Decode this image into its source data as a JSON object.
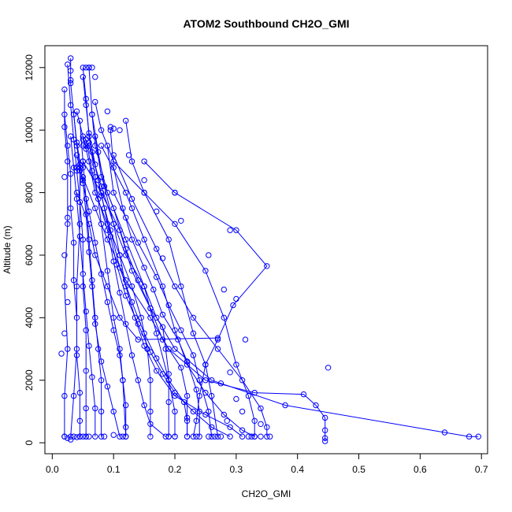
{
  "chart_data": {
    "type": "line",
    "title": "ATOM2 Southbound CH2O_GMI",
    "xlabel": "CH2O_GMI",
    "ylabel": "Altitude (m)",
    "xlim": [
      -0.012,
      0.71
    ],
    "ylim": [
      -350,
      12700
    ],
    "xticks": [
      0.0,
      0.1,
      0.2,
      0.3,
      0.4,
      0.5,
      0.6,
      0.7
    ],
    "xtick_labels": [
      "0.0",
      "0.1",
      "0.2",
      "0.3",
      "0.4",
      "0.5",
      "0.6",
      "0.7"
    ],
    "yticks": [
      0,
      2000,
      4000,
      6000,
      8000,
      10000,
      12000
    ],
    "ytick_labels": [
      "0",
      "2000",
      "4000",
      "6000",
      "8000",
      "10000",
      "12000"
    ],
    "grid": false,
    "color": "#0000ff",
    "marker": "open-circle",
    "profiles": [
      [
        [
          0.02,
          11300
        ],
        [
          0.02,
          10100
        ],
        [
          0.025,
          9000
        ],
        [
          0.025,
          7000
        ],
        [
          0.02,
          5000
        ],
        [
          0.025,
          3000
        ],
        [
          0.02,
          1500
        ],
        [
          0.02,
          200
        ]
      ],
      [
        [
          0.03,
          12300
        ],
        [
          0.03,
          11500
        ],
        [
          0.035,
          10500
        ],
        [
          0.04,
          9500
        ],
        [
          0.045,
          8800
        ],
        [
          0.045,
          7000
        ],
        [
          0.04,
          5000
        ],
        [
          0.04,
          3000
        ],
        [
          0.035,
          1500
        ],
        [
          0.03,
          200
        ]
      ],
      [
        [
          0.05,
          12000
        ],
        [
          0.055,
          11000
        ],
        [
          0.06,
          9800
        ],
        [
          0.07,
          8500
        ],
        [
          0.08,
          7000
        ],
        [
          0.09,
          5500
        ],
        [
          0.1,
          4000
        ],
        [
          0.11,
          3000
        ],
        [
          0.115,
          2000
        ],
        [
          0.12,
          200
        ]
      ],
      [
        [
          0.06,
          12000
        ],
        [
          0.065,
          10500
        ],
        [
          0.07,
          9500
        ],
        [
          0.09,
          8000
        ],
        [
          0.12,
          6500
        ],
        [
          0.15,
          5000
        ],
        [
          0.17,
          3500
        ],
        [
          0.19,
          2000
        ],
        [
          0.2,
          1000
        ],
        [
          0.2,
          200
        ]
      ],
      [
        [
          0.07,
          10900
        ],
        [
          0.08,
          10000
        ],
        [
          0.1,
          9000
        ],
        [
          0.15,
          8000
        ],
        [
          0.19,
          6500
        ],
        [
          0.21,
          5000
        ],
        [
          0.23,
          3500
        ],
        [
          0.25,
          2500
        ],
        [
          0.26,
          1500
        ],
        [
          0.27,
          200
        ]
      ],
      [
        [
          0.12,
          10300
        ],
        [
          0.13,
          9000
        ],
        [
          0.15,
          8000
        ],
        [
          0.2,
          7000
        ],
        [
          0.25,
          5500
        ],
        [
          0.28,
          4000
        ],
        [
          0.3,
          2500
        ],
        [
          0.32,
          1500
        ],
        [
          0.33,
          700
        ],
        [
          0.33,
          200
        ]
      ],
      [
        [
          0.15,
          9000
        ],
        [
          0.2,
          8000
        ],
        [
          0.3,
          6800
        ],
        [
          0.35,
          5650
        ],
        [
          0.295,
          4400
        ],
        [
          0.27,
          3300
        ],
        [
          0.25,
          2500
        ],
        [
          0.24,
          1500
        ],
        [
          0.235,
          700
        ],
        [
          0.23,
          200
        ]
      ],
      [
        [
          0.1,
          9200
        ],
        [
          0.13,
          7800
        ],
        [
          0.17,
          6200
        ],
        [
          0.2,
          5000
        ],
        [
          0.23,
          4000
        ],
        [
          0.27,
          3000
        ],
        [
          0.31,
          2000
        ],
        [
          0.34,
          1100
        ],
        [
          0.35,
          500
        ],
        [
          0.35,
          200
        ]
      ],
      [
        [
          0.08,
          9500
        ],
        [
          0.12,
          8000
        ],
        [
          0.15,
          6500
        ],
        [
          0.18,
          5000
        ],
        [
          0.2,
          3600
        ],
        [
          0.22,
          2500
        ],
        [
          0.25,
          1600
        ],
        [
          0.28,
          900
        ],
        [
          0.31,
          400
        ],
        [
          0.33,
          200
        ]
      ],
      [
        [
          0.05,
          9000
        ],
        [
          0.08,
          8000
        ],
        [
          0.11,
          6800
        ],
        [
          0.13,
          5500
        ],
        [
          0.16,
          4300
        ],
        [
          0.18,
          3300
        ],
        [
          0.21,
          2400
        ],
        [
          0.22,
          1500
        ],
        [
          0.22,
          800
        ],
        [
          0.22,
          200
        ]
      ],
      [
        [
          0.06,
          9500
        ],
        [
          0.08,
          8200
        ],
        [
          0.1,
          7000
        ],
        [
          0.12,
          6000
        ],
        [
          0.15,
          5000
        ],
        [
          0.17,
          4000
        ],
        [
          0.2,
          3000
        ],
        [
          0.26,
          2000
        ],
        [
          0.38,
          1200
        ],
        [
          0.64,
          330
        ],
        [
          0.68,
          200
        ],
        [
          0.695,
          200
        ]
      ],
      [
        [
          0.05,
          8500
        ],
        [
          0.07,
          7500
        ],
        [
          0.09,
          6500
        ],
        [
          0.12,
          5200
        ],
        [
          0.16,
          4000
        ],
        [
          0.19,
          3000
        ],
        [
          0.25,
          2000
        ],
        [
          0.33,
          1600
        ],
        [
          0.41,
          1550
        ],
        [
          0.43,
          1200
        ],
        [
          0.445,
          800
        ],
        [
          0.445,
          400
        ],
        [
          0.445,
          150
        ],
        [
          0.445,
          50
        ]
      ],
      [
        [
          0.04,
          8000
        ],
        [
          0.06,
          7000
        ],
        [
          0.07,
          6000
        ],
        [
          0.09,
          5000
        ],
        [
          0.11,
          4000
        ],
        [
          0.14,
          3300
        ],
        [
          0.27,
          3350
        ]
      ],
      [
        [
          0.07,
          9800
        ],
        [
          0.08,
          8500
        ],
        [
          0.1,
          7500
        ],
        [
          0.12,
          6200
        ],
        [
          0.14,
          5200
        ],
        [
          0.16,
          4300
        ],
        [
          0.18,
          3700
        ],
        [
          0.185,
          3000
        ],
        [
          0.19,
          2200
        ],
        [
          0.19,
          1300
        ],
        [
          0.19,
          200
        ]
      ],
      [
        [
          0.09,
          9500
        ],
        [
          0.1,
          8000
        ],
        [
          0.12,
          7200
        ],
        [
          0.14,
          6400
        ],
        [
          0.17,
          5300
        ],
        [
          0.19,
          4400
        ],
        [
          0.21,
          3600
        ],
        [
          0.23,
          2800
        ],
        [
          0.24,
          2000
        ],
        [
          0.255,
          1000
        ],
        [
          0.26,
          200
        ]
      ],
      [
        [
          0.095,
          10000
        ],
        [
          0.1,
          8800
        ],
        [
          0.115,
          7500
        ],
        [
          0.13,
          6500
        ],
        [
          0.15,
          5600
        ],
        [
          0.165,
          4900
        ],
        [
          0.18,
          4100
        ],
        [
          0.205,
          3300
        ],
        [
          0.22,
          2600
        ],
        [
          0.235,
          1700
        ],
        [
          0.24,
          1000
        ],
        [
          0.24,
          200
        ]
      ],
      [
        [
          0.045,
          10300
        ],
        [
          0.05,
          9000
        ],
        [
          0.055,
          7800
        ],
        [
          0.06,
          6500
        ],
        [
          0.065,
          5200
        ],
        [
          0.07,
          4000
        ],
        [
          0.075,
          3000
        ],
        [
          0.08,
          2000
        ],
        [
          0.08,
          1000
        ],
        [
          0.08,
          200
        ]
      ],
      [
        [
          0.035,
          10500
        ],
        [
          0.04,
          9600
        ],
        [
          0.05,
          8400
        ],
        [
          0.055,
          7300
        ],
        [
          0.06,
          6100
        ],
        [
          0.065,
          5000
        ],
        [
          0.07,
          3800
        ],
        [
          0.08,
          2600
        ],
        [
          0.09,
          1800
        ],
        [
          0.1,
          1000
        ],
        [
          0.11,
          200
        ]
      ],
      [
        [
          0.055,
          9700
        ],
        [
          0.065,
          8700
        ],
        [
          0.075,
          7800
        ],
        [
          0.09,
          6800
        ],
        [
          0.1,
          5800
        ],
        [
          0.11,
          4800
        ],
        [
          0.12,
          3800
        ],
        [
          0.13,
          2800
        ],
        [
          0.14,
          2000
        ],
        [
          0.15,
          1200
        ],
        [
          0.16,
          600
        ],
        [
          0.185,
          200
        ]
      ],
      [
        [
          0.025,
          12100
        ],
        [
          0.03,
          10800
        ],
        [
          0.035,
          9700
        ],
        [
          0.04,
          8700
        ],
        [
          0.045,
          7700
        ],
        [
          0.05,
          6500
        ],
        [
          0.05,
          5000
        ],
        [
          0.055,
          3600
        ],
        [
          0.055,
          2300
        ],
        [
          0.055,
          1100
        ],
        [
          0.055,
          200
        ]
      ],
      [
        [
          0.065,
          10500
        ],
        [
          0.075,
          9300
        ],
        [
          0.085,
          8200
        ],
        [
          0.1,
          7000
        ],
        [
          0.11,
          6000
        ],
        [
          0.12,
          5000
        ],
        [
          0.135,
          4000
        ],
        [
          0.15,
          3100
        ],
        [
          0.17,
          2300
        ],
        [
          0.2,
          1500
        ],
        [
          0.25,
          900
        ],
        [
          0.29,
          500
        ],
        [
          0.31,
          200
        ]
      ],
      [
        [
          0.03,
          9800
        ],
        [
          0.035,
          8800
        ],
        [
          0.04,
          7800
        ],
        [
          0.045,
          6600
        ],
        [
          0.05,
          5400
        ],
        [
          0.055,
          4200
        ],
        [
          0.06,
          3100
        ],
        [
          0.065,
          2100
        ],
        [
          0.07,
          1100
        ],
        [
          0.07,
          200
        ]
      ],
      [
        [
          0.04,
          10600
        ],
        [
          0.05,
          9800
        ],
        [
          0.06,
          9000
        ],
        [
          0.07,
          8000
        ],
        [
          0.09,
          7000
        ],
        [
          0.11,
          6000
        ],
        [
          0.13,
          5000
        ],
        [
          0.145,
          4000
        ],
        [
          0.155,
          3000
        ],
        [
          0.16,
          2000
        ],
        [
          0.16,
          1000
        ],
        [
          0.16,
          200
        ]
      ],
      [
        [
          0.05,
          11700
        ],
        [
          0.055,
          10800
        ],
        [
          0.06,
          9900
        ],
        [
          0.07,
          8900
        ],
        [
          0.08,
          7900
        ],
        [
          0.095,
          6800
        ],
        [
          0.11,
          5600
        ],
        [
          0.13,
          4500
        ],
        [
          0.15,
          3500
        ],
        [
          0.17,
          2700
        ],
        [
          0.19,
          2000
        ],
        [
          0.215,
          1300
        ],
        [
          0.22,
          700
        ],
        [
          0.22,
          200
        ]
      ],
      [
        [
          0.02,
          10500
        ],
        [
          0.025,
          9500
        ],
        [
          0.03,
          8600
        ],
        [
          0.03,
          7500
        ],
        [
          0.035,
          6400
        ],
        [
          0.035,
          5200
        ],
        [
          0.04,
          4000
        ],
        [
          0.04,
          2800
        ],
        [
          0.045,
          1600
        ],
        [
          0.045,
          700
        ],
        [
          0.045,
          200
        ]
      ],
      [
        [
          0.065,
          9300
        ],
        [
          0.075,
          8400
        ],
        [
          0.085,
          7500
        ],
        [
          0.095,
          6600
        ],
        [
          0.105,
          5700
        ],
        [
          0.12,
          4700
        ],
        [
          0.14,
          3800
        ],
        [
          0.16,
          2900
        ],
        [
          0.18,
          2200
        ],
        [
          0.2,
          1600
        ],
        [
          0.23,
          1000
        ],
        [
          0.26,
          500
        ],
        [
          0.29,
          200
        ]
      ],
      [
        [
          0.04,
          9200
        ],
        [
          0.05,
          8300
        ],
        [
          0.06,
          7400
        ],
        [
          0.07,
          6400
        ],
        [
          0.08,
          5400
        ],
        [
          0.09,
          4500
        ],
        [
          0.1,
          3600
        ],
        [
          0.11,
          2800
        ],
        [
          0.115,
          2000
        ],
        [
          0.12,
          1200
        ],
        [
          0.12,
          500
        ],
        [
          0.12,
          200
        ]
      ],
      [
        [
          0.04,
          8800
        ],
        [
          0.045,
          8900
        ],
        [
          0.05,
          8800
        ],
        [
          0.045,
          8700
        ],
        [
          0.04,
          8800
        ]
      ],
      [
        [
          0.05,
          9700
        ],
        [
          0.055,
          9500
        ],
        [
          0.06,
          9600
        ],
        [
          0.055,
          9400
        ],
        [
          0.05,
          9500
        ]
      ]
    ],
    "isolated_points": [
      [
        0.02,
        200
      ],
      [
        0.025,
        150
      ],
      [
        0.03,
        100
      ],
      [
        0.035,
        200
      ],
      [
        0.04,
        180
      ],
      [
        0.045,
        200
      ],
      [
        0.05,
        200
      ],
      [
        0.055,
        200
      ],
      [
        0.06,
        200
      ],
      [
        0.085,
        200
      ],
      [
        0.1,
        250
      ],
      [
        0.115,
        200
      ],
      [
        0.19,
        200
      ],
      [
        0.2,
        200
      ],
      [
        0.235,
        200
      ],
      [
        0.255,
        200
      ],
      [
        0.265,
        200
      ],
      [
        0.275,
        200
      ],
      [
        0.32,
        200
      ],
      [
        0.325,
        200
      ],
      [
        0.34,
        200
      ],
      [
        0.355,
        200
      ],
      [
        0.45,
        2400
      ],
      [
        0.2,
        8000
      ],
      [
        0.13,
        7500
      ],
      [
        0.29,
        6800
      ],
      [
        0.18,
        5900
      ],
      [
        0.015,
        2850
      ],
      [
        0.02,
        3500
      ],
      [
        0.025,
        4500
      ],
      [
        0.02,
        6000
      ],
      [
        0.025,
        7200
      ],
      [
        0.02,
        8500
      ],
      [
        0.03,
        11900
      ],
      [
        0.03,
        11600
      ],
      [
        0.055,
        12000
      ],
      [
        0.06,
        12000
      ],
      [
        0.065,
        12000
      ],
      [
        0.07,
        11700
      ],
      [
        0.09,
        10600
      ],
      [
        0.095,
        10100
      ],
      [
        0.1,
        10050
      ],
      [
        0.11,
        10000
      ],
      [
        0.125,
        9200
      ],
      [
        0.15,
        8400
      ],
      [
        0.17,
        7400
      ],
      [
        0.21,
        7100
      ],
      [
        0.255,
        6000
      ],
      [
        0.28,
        4900
      ],
      [
        0.3,
        4600
      ],
      [
        0.315,
        3300
      ],
      [
        0.29,
        2250
      ],
      [
        0.275,
        1900
      ],
      [
        0.31,
        1000
      ],
      [
        0.285,
        700
      ],
      [
        0.34,
        600
      ],
      [
        0.3,
        1400
      ]
    ]
  }
}
